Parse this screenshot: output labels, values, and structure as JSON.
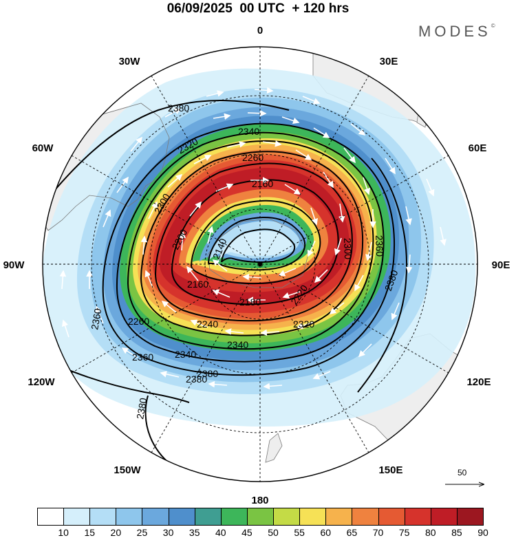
{
  "header": {
    "title": "06/09/2025  00 UTC  + 120 hrs",
    "brand": "MODES"
  },
  "map": {
    "projection": "south-polar-stereographic",
    "longitude_labels": [
      "0",
      "30E",
      "60E",
      "90E",
      "120E",
      "150E",
      "180",
      "150W",
      "120W",
      "90W",
      "60W",
      "30W"
    ],
    "contour_labels": [
      "2380",
      "2340",
      "2260",
      "2160",
      "2200",
      "2140",
      "2160",
      "2180",
      "2220",
      "2300",
      "2360",
      "2380",
      "2320",
      "2340",
      "2360",
      "2380",
      "2380",
      "2360",
      "2240",
      "2260",
      "2340",
      "2380",
      "2320",
      "2300"
    ],
    "reference_vector": {
      "value": "50"
    },
    "colors": {
      "land": "#eeeeee",
      "coast": "#7a7a7a",
      "contour": "#000000",
      "vector": "#ffffff"
    }
  },
  "colorbar": {
    "labels": [
      "10",
      "15",
      "20",
      "25",
      "30",
      "35",
      "40",
      "45",
      "50",
      "55",
      "60",
      "65",
      "70",
      "75",
      "80",
      "85",
      "90"
    ],
    "colors": [
      "#ffffff",
      "#d5effb",
      "#b4def6",
      "#8ec6ec",
      "#6ba8dd",
      "#4f8fcc",
      "#3f9e92",
      "#3db65a",
      "#7ac443",
      "#c4db46",
      "#f6e156",
      "#f6b24c",
      "#ef823f",
      "#e55a33",
      "#d6332c",
      "#bf1d26",
      "#9c1720"
    ]
  }
}
